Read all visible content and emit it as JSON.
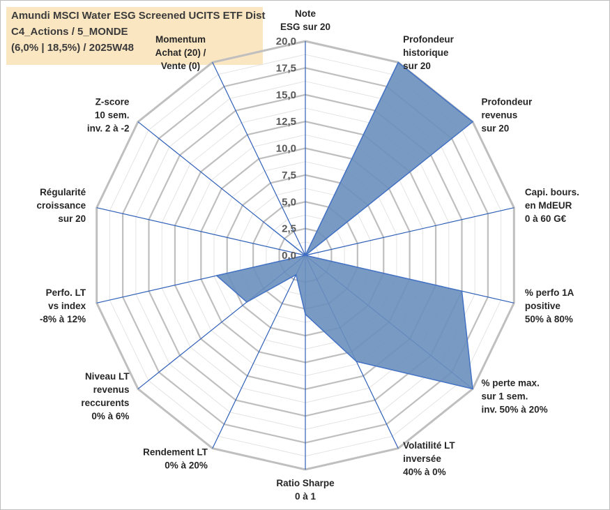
{
  "title": {
    "line1": "Amundi MSCI Water ESG Screened UCITS ETF Dist",
    "line2": "C4_Actions / 5_MONDE",
    "line3": "(6,0% | 18,5%) / 2025W48"
  },
  "colors": {
    "fill": "#6a8fbd",
    "stroke": "#4472c4",
    "spoke": "#2e5fb8",
    "ring_major": "#bfbfbf",
    "ring_minor": "#e3e3e3",
    "title_bg": "#fbe5bf"
  },
  "chart_data": {
    "type": "radar",
    "rmax": 20,
    "tick_labels": [
      "0,0",
      "2,5",
      "5,0",
      "7,5",
      "10,0",
      "12,5",
      "15,0",
      "17,5",
      "20,0"
    ],
    "axes": [
      {
        "lines": [
          "Note",
          "ESG sur 20"
        ]
      },
      {
        "lines": [
          "Profondeur",
          "historique",
          "sur 20"
        ]
      },
      {
        "lines": [
          "Profondeur",
          "revenus",
          "sur 20"
        ]
      },
      {
        "lines": [
          "Capi. bours.",
          "en MdEUR",
          "0 à 60 G€"
        ]
      },
      {
        "lines": [
          "% perfo 1A",
          "positive",
          "50% à 80%"
        ]
      },
      {
        "lines": [
          "% perte max.",
          "sur 1 sem.",
          "inv. 50% à 20%"
        ]
      },
      {
        "lines": [
          "Volatilité LT",
          "inversée",
          "40% à 0%"
        ]
      },
      {
        "lines": [
          "Ratio Sharpe",
          "0 à 1"
        ]
      },
      {
        "lines": [
          "Rendement LT",
          "0% à 20%"
        ]
      },
      {
        "lines": [
          "Niveau LT",
          "revenus",
          "reccurents",
          "0% à 6%"
        ]
      },
      {
        "lines": [
          "Perfo. LT",
          "vs index",
          "-8% à 12%"
        ]
      },
      {
        "lines": [
          "Régularité",
          "croissance",
          "sur 20"
        ]
      },
      {
        "lines": [
          "Z-score",
          "10 sem.",
          "inv. 2 à -2"
        ]
      },
      {
        "lines": [
          "Momentum",
          "Achat (20) /",
          "Vente (0)"
        ]
      }
    ],
    "values": [
      0,
      20,
      20,
      0,
      15,
      20,
      11,
      5.5,
      2,
      7,
      8.5,
      0,
      4.5,
      0
    ]
  }
}
